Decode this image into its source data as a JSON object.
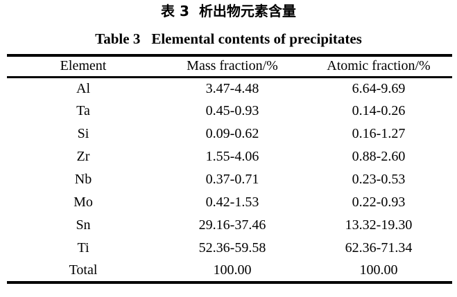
{
  "page": {
    "background_color": "#ffffff",
    "text_color": "#000000"
  },
  "caption": {
    "zh": {
      "label": "表 3",
      "text": "析出物元素含量"
    },
    "en": {
      "label": "Table 3",
      "text": "Elemental contents of precipitates"
    }
  },
  "table": {
    "headers": [
      "Element",
      "Mass fraction/%",
      "Atomic fraction/%"
    ],
    "rows": [
      [
        "Al",
        "3.47-4.48",
        "6.64-9.69"
      ],
      [
        "Ta",
        "0.45-0.93",
        "0.14-0.26"
      ],
      [
        "Si",
        "0.09-0.62",
        "0.16-1.27"
      ],
      [
        "Zr",
        "1.55-4.06",
        "0.88-2.60"
      ],
      [
        "Nb",
        "0.37-0.71",
        "0.23-0.53"
      ],
      [
        "Mo",
        "0.42-1.53",
        "0.22-0.93"
      ],
      [
        "Sn",
        "29.16-37.46",
        "13.32-19.30"
      ],
      [
        "Ti",
        "52.36-59.58",
        "62.36-71.34"
      ],
      [
        "Total",
        "100.00",
        "100.00"
      ]
    ]
  }
}
